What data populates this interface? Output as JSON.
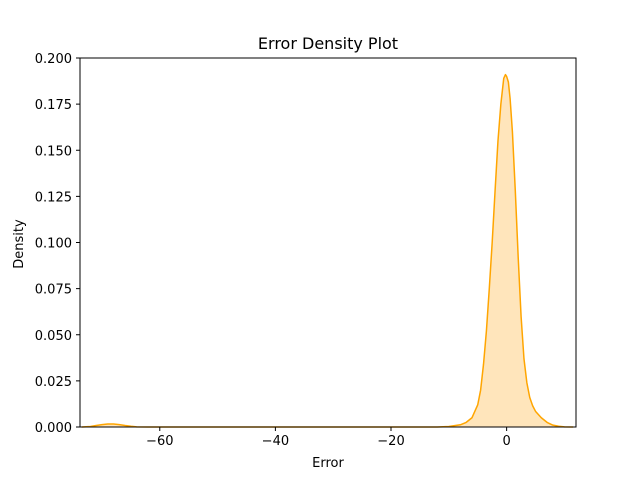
{
  "chart_data": {
    "type": "area",
    "title": "Error Density Plot",
    "xlabel": "Error",
    "ylabel": "Density",
    "xlim": [
      -73.8,
      12.0
    ],
    "ylim": [
      0.0,
      0.2
    ],
    "xticks": [
      -60,
      -40,
      -20,
      0
    ],
    "xtick_labels": [
      "−60",
      "−40",
      "−20",
      "0"
    ],
    "yticks": [
      0.0,
      0.025,
      0.05,
      0.075,
      0.1,
      0.125,
      0.15,
      0.175,
      0.2
    ],
    "ytick_labels": [
      "0.000",
      "0.025",
      "0.050",
      "0.075",
      "0.100",
      "0.125",
      "0.150",
      "0.175",
      "0.200"
    ],
    "grid": false,
    "color": "#ffa500",
    "fill_color": "#ffe5bb",
    "series": [
      {
        "x": [
          -73.5,
          -72,
          -71,
          -70,
          -69,
          -68,
          -67,
          -66,
          -65,
          -64,
          -62,
          -60,
          -50,
          -40,
          -30,
          -20,
          -12,
          -10,
          -8,
          -7,
          -6,
          -5,
          -4.5,
          -4,
          -3.5,
          -3,
          -2.5,
          -2,
          -1.5,
          -1,
          -0.5,
          -0.2,
          0,
          0.3,
          0.6,
          1,
          1.5,
          2,
          2.5,
          3,
          3.5,
          4,
          4.5,
          5,
          6,
          7,
          8,
          9,
          10,
          11.5
        ],
        "y": [
          0.0,
          0.0003,
          0.0008,
          0.0013,
          0.0016,
          0.0016,
          0.0013,
          0.0008,
          0.0004,
          0.0001,
          0.0,
          0.0,
          0.0,
          0.0,
          0.0,
          0.0,
          0.0,
          0.0003,
          0.0012,
          0.0025,
          0.005,
          0.012,
          0.02,
          0.034,
          0.052,
          0.075,
          0.1,
          0.128,
          0.155,
          0.175,
          0.189,
          0.191,
          0.19,
          0.187,
          0.178,
          0.16,
          0.128,
          0.092,
          0.06,
          0.037,
          0.024,
          0.016,
          0.0115,
          0.0085,
          0.005,
          0.0025,
          0.001,
          0.0004,
          0.0001,
          0.0
        ]
      }
    ]
  }
}
